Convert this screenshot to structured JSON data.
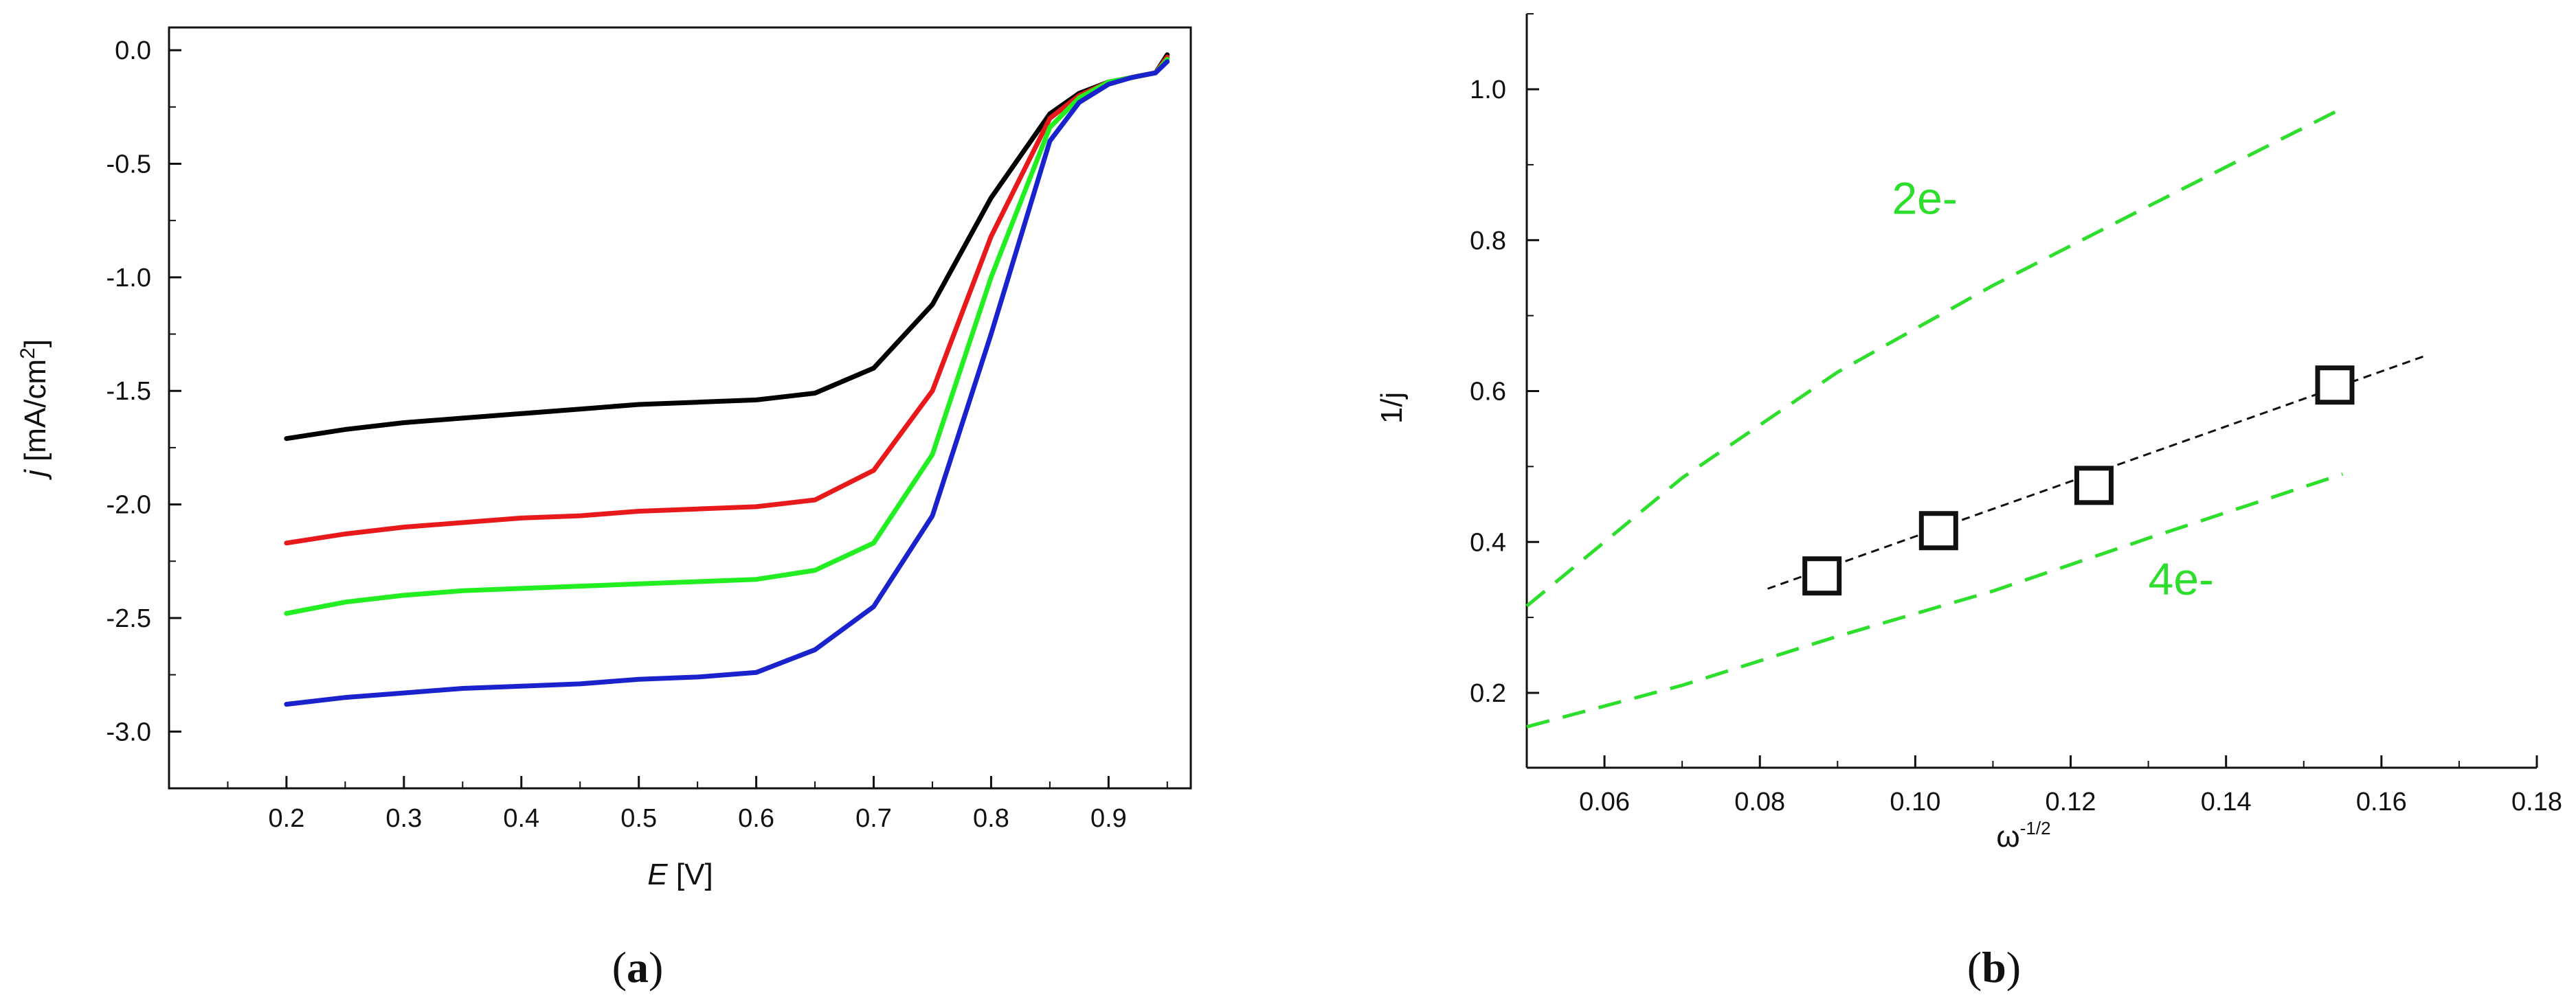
{
  "figure": {
    "panel_a_caption": "(a)",
    "panel_b_caption": "(b)"
  },
  "chart_data": [
    {
      "type": "line",
      "xlabel": {
        "italic": "E",
        "rest": " [V]"
      },
      "ylabel": {
        "italic": "j",
        "rest": " [mA/cm",
        "sup": "2",
        "close": "]"
      },
      "xlim": [
        0.1,
        0.97
      ],
      "ylim": [
        -3.25,
        0.1
      ],
      "xticks": [
        0.2,
        0.3,
        0.4,
        0.5,
        0.6,
        0.7,
        0.8,
        0.9
      ],
      "xtick_labels": [
        "0.2",
        "0.3",
        "0.4",
        "0.5",
        "0.6",
        "0.7",
        "0.8",
        "0.9"
      ],
      "yticks": [
        0.0,
        -0.5,
        -1.0,
        -1.5,
        -2.0,
        -2.5,
        -3.0
      ],
      "ytick_labels": [
        "0.0",
        "-0.5",
        "-1.0",
        "-1.5",
        "-2.0",
        "-2.5",
        "-3.0"
      ],
      "grid": false,
      "series": [
        {
          "color": "#000000",
          "x": [
            0.2,
            0.25,
            0.3,
            0.35,
            0.4,
            0.45,
            0.5,
            0.55,
            0.6,
            0.65,
            0.7,
            0.75,
            0.8,
            0.85,
            0.875,
            0.9,
            0.92,
            0.94,
            0.95
          ],
          "y": [
            -1.71,
            -1.67,
            -1.64,
            -1.62,
            -1.6,
            -1.58,
            -1.56,
            -1.55,
            -1.54,
            -1.51,
            -1.4,
            -1.12,
            -0.65,
            -0.28,
            -0.19,
            -0.14,
            -0.12,
            -0.1,
            -0.02
          ]
        },
        {
          "color": "#e8191b",
          "x": [
            0.2,
            0.25,
            0.3,
            0.35,
            0.4,
            0.45,
            0.5,
            0.55,
            0.6,
            0.65,
            0.7,
            0.75,
            0.8,
            0.85,
            0.875,
            0.9,
            0.92,
            0.94,
            0.95
          ],
          "y": [
            -2.17,
            -2.13,
            -2.1,
            -2.08,
            -2.06,
            -2.05,
            -2.03,
            -2.02,
            -2.01,
            -1.98,
            -1.85,
            -1.5,
            -0.82,
            -0.3,
            -0.2,
            -0.14,
            -0.12,
            -0.1,
            -0.03
          ]
        },
        {
          "color": "#22ee22",
          "x": [
            0.2,
            0.25,
            0.3,
            0.35,
            0.4,
            0.45,
            0.5,
            0.55,
            0.6,
            0.65,
            0.7,
            0.75,
            0.8,
            0.85,
            0.875,
            0.9,
            0.92,
            0.94,
            0.95
          ],
          "y": [
            -2.48,
            -2.43,
            -2.4,
            -2.38,
            -2.37,
            -2.36,
            -2.35,
            -2.34,
            -2.33,
            -2.29,
            -2.17,
            -1.78,
            -1.0,
            -0.34,
            -0.21,
            -0.14,
            -0.12,
            -0.1,
            -0.04
          ]
        },
        {
          "color": "#1a22cc",
          "x": [
            0.2,
            0.25,
            0.3,
            0.35,
            0.4,
            0.45,
            0.5,
            0.55,
            0.6,
            0.65,
            0.7,
            0.75,
            0.8,
            0.85,
            0.875,
            0.9,
            0.92,
            0.94,
            0.95
          ],
          "y": [
            -2.88,
            -2.85,
            -2.83,
            -2.81,
            -2.8,
            -2.79,
            -2.77,
            -2.76,
            -2.74,
            -2.64,
            -2.45,
            -2.05,
            -1.25,
            -0.4,
            -0.23,
            -0.15,
            -0.12,
            -0.1,
            -0.05
          ]
        }
      ]
    },
    {
      "type": "scatter",
      "xlabel": {
        "base": "ω",
        "sup": "-1/2"
      },
      "ylabel": "1/j",
      "xlim": [
        0.05,
        0.18
      ],
      "ylim": [
        0.1,
        1.1
      ],
      "xticks": [
        0.06,
        0.08,
        0.1,
        0.12,
        0.14,
        0.16,
        0.18
      ],
      "xtick_labels": [
        "0.06",
        "0.08",
        "0.10",
        "0.12",
        "0.14",
        "0.16",
        "0.18"
      ],
      "yticks": [
        0.2,
        0.4,
        0.6,
        0.8,
        1.0
      ],
      "ytick_labels": [
        "0.2",
        "0.4",
        "0.6",
        "0.8",
        "1.0"
      ],
      "grid": false,
      "points": {
        "x": [
          0.088,
          0.103,
          0.123,
          0.154
        ],
        "y": [
          0.355,
          0.415,
          0.475,
          0.608
        ]
      },
      "fit_line": {
        "x": [
          0.081,
          0.166
        ],
        "y": [
          0.338,
          0.648
        ]
      },
      "reference_lines": [
        {
          "label": "2e-",
          "color": "#2dde2d",
          "x": [
            0.05,
            0.07,
            0.09,
            0.11,
            0.13,
            0.155
          ],
          "y": [
            0.315,
            0.485,
            0.625,
            0.74,
            0.845,
            0.975
          ]
        },
        {
          "label": "4e-",
          "color": "#2dde2d",
          "x": [
            0.05,
            0.07,
            0.09,
            0.11,
            0.13,
            0.155
          ],
          "y": [
            0.155,
            0.21,
            0.275,
            0.335,
            0.405,
            0.49
          ]
        }
      ],
      "annotations": [
        {
          "text": "2e-",
          "x": 0.097,
          "y": 0.835
        },
        {
          "text": "4e-",
          "x": 0.13,
          "y": 0.33
        }
      ]
    }
  ]
}
